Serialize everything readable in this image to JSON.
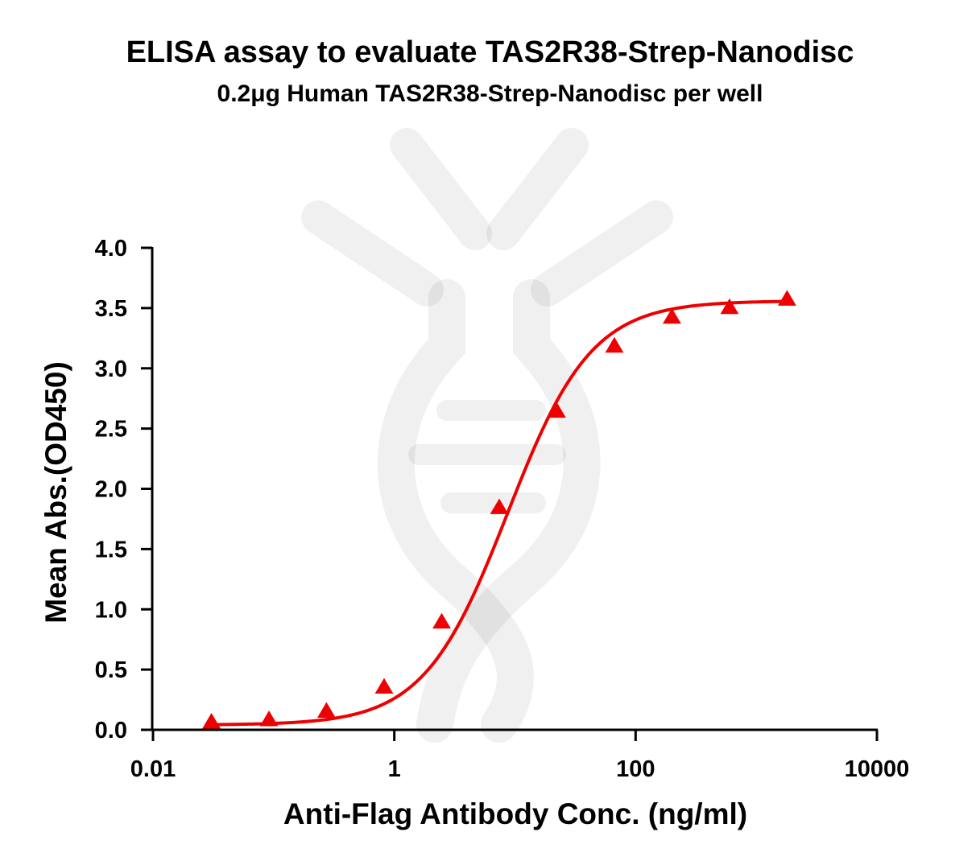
{
  "chart_data": {
    "type": "scatter",
    "title": "ELISA assay to evaluate TAS2R38-Strep-Nanodisc",
    "subtitle": "0.2μg Human TAS2R38-Strep-Nanodisc per well",
    "xlabel": "Anti-Flag Antibody Conc. (ng/ml)",
    "ylabel": "Mean Abs.(OD450)",
    "x_scale": "log",
    "xlim": [
      0.01,
      10000
    ],
    "ylim": [
      0,
      4.0
    ],
    "x_ticks": [
      0.01,
      1,
      100,
      10000
    ],
    "x_tick_labels": [
      "0.01",
      "1",
      "100",
      "10000"
    ],
    "y_ticks": [
      0,
      0.5,
      1.0,
      1.5,
      2.0,
      2.5,
      3.0,
      3.5,
      4.0
    ],
    "y_tick_labels": [
      "0.0",
      "0.5",
      "1.0",
      "1.5",
      "2.0",
      "2.5",
      "3.0",
      "3.5",
      "4.0"
    ],
    "grid": false,
    "marker": "triangle",
    "color": "#ee0000",
    "series": [
      {
        "x": [
          0.0305,
          0.0915,
          0.274,
          0.823,
          2.47,
          7.41,
          22.2,
          66.7,
          200,
          600,
          1800
        ],
        "y": [
          0.06,
          0.08,
          0.15,
          0.35,
          0.89,
          1.84,
          2.64,
          3.18,
          3.42,
          3.5,
          3.57
        ]
      }
    ],
    "fit_curve": {
      "model": "4PL",
      "bottom": 0.04,
      "top": 3.56,
      "ec50": 8.7,
      "hill": 1.25
    }
  }
}
